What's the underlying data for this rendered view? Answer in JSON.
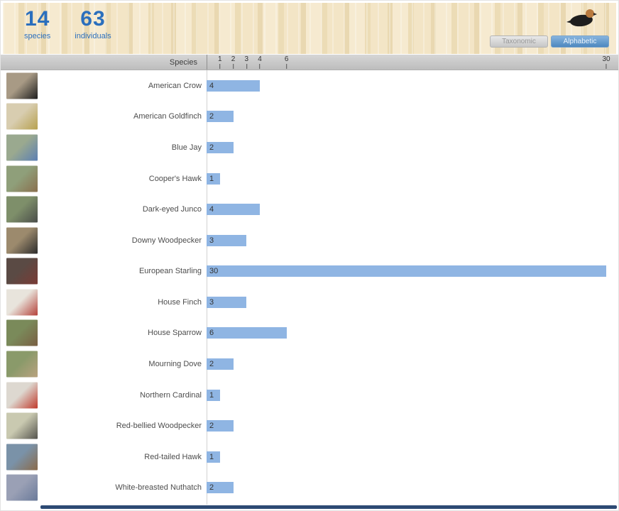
{
  "header": {
    "stats": [
      {
        "value": "14",
        "label": "species"
      },
      {
        "value": "63",
        "label": "individuals"
      }
    ],
    "sort_toggle": {
      "options": [
        {
          "label": "Taxonomic",
          "selected": false
        },
        {
          "label": "Alphabetic",
          "selected": true
        }
      ]
    },
    "colors": {
      "accent_blue": "#2b6fbd",
      "header_bg": "#f3e5c6"
    }
  },
  "list_header": {
    "species_column": "Species"
  },
  "chart_data": {
    "type": "bar",
    "orientation": "horizontal",
    "title": "",
    "xlabel": "",
    "ylabel": "Species",
    "categories": [
      "American Crow",
      "American Goldfinch",
      "Blue Jay",
      "Cooper's Hawk",
      "Dark-eyed Junco",
      "Downy Woodpecker",
      "European Starling",
      "House Finch",
      "House Sparrow",
      "Mourning Dove",
      "Northern Cardinal",
      "Red-bellied Woodpecker",
      "Red-tailed Hawk",
      "White-breasted Nuthatch"
    ],
    "values": [
      4,
      2,
      2,
      1,
      4,
      3,
      30,
      3,
      6,
      2,
      1,
      2,
      1,
      2
    ],
    "value_labels_inside": true,
    "xticks": [
      1,
      2,
      3,
      4,
      6,
      30
    ],
    "xlim": [
      0,
      30
    ],
    "grid": false,
    "legend": "none",
    "bar_color": "#8fb5e3"
  },
  "thumbnails": [
    {
      "name": "american-crow-thumbnail",
      "colors": [
        "#a89a85",
        "#1d1d1d"
      ]
    },
    {
      "name": "american-goldfinch-thumbnail",
      "colors": [
        "#d8cdb0",
        "#b7a14f"
      ]
    },
    {
      "name": "blue-jay-thumbnail",
      "colors": [
        "#9aa98f",
        "#5b7fb3"
      ]
    },
    {
      "name": "coopers-hawk-thumbnail",
      "colors": [
        "#8f9f7a",
        "#8a6f4d"
      ]
    },
    {
      "name": "dark-eyed-junco-thumbnail",
      "colors": [
        "#7e8f6a",
        "#4a4d4a"
      ]
    },
    {
      "name": "downy-woodpecker-thumbnail",
      "colors": [
        "#9c8a6d",
        "#2b2b2b"
      ]
    },
    {
      "name": "european-starling-thumbnail",
      "colors": [
        "#5a4a44",
        "#7a3b35"
      ]
    },
    {
      "name": "house-finch-thumbnail",
      "colors": [
        "#e8e4dc",
        "#b5413a"
      ]
    },
    {
      "name": "house-sparrow-thumbnail",
      "colors": [
        "#7a8a5a",
        "#7a5f43"
      ]
    },
    {
      "name": "mourning-dove-thumbnail",
      "colors": [
        "#8a9a6a",
        "#b9a27f"
      ]
    },
    {
      "name": "northern-cardinal-thumbnail",
      "colors": [
        "#ddd8d0",
        "#c0392b"
      ]
    },
    {
      "name": "red-bellied-woodpecker-thumbnail",
      "colors": [
        "#c9c9b0",
        "#55544e"
      ]
    },
    {
      "name": "red-tailed-hawk-thumbnail",
      "colors": [
        "#7a92a8",
        "#8a6a4a"
      ]
    },
    {
      "name": "white-breasted-nuthatch-thumbnail",
      "colors": [
        "#9aa0b5",
        "#6a7a9a"
      ]
    }
  ]
}
